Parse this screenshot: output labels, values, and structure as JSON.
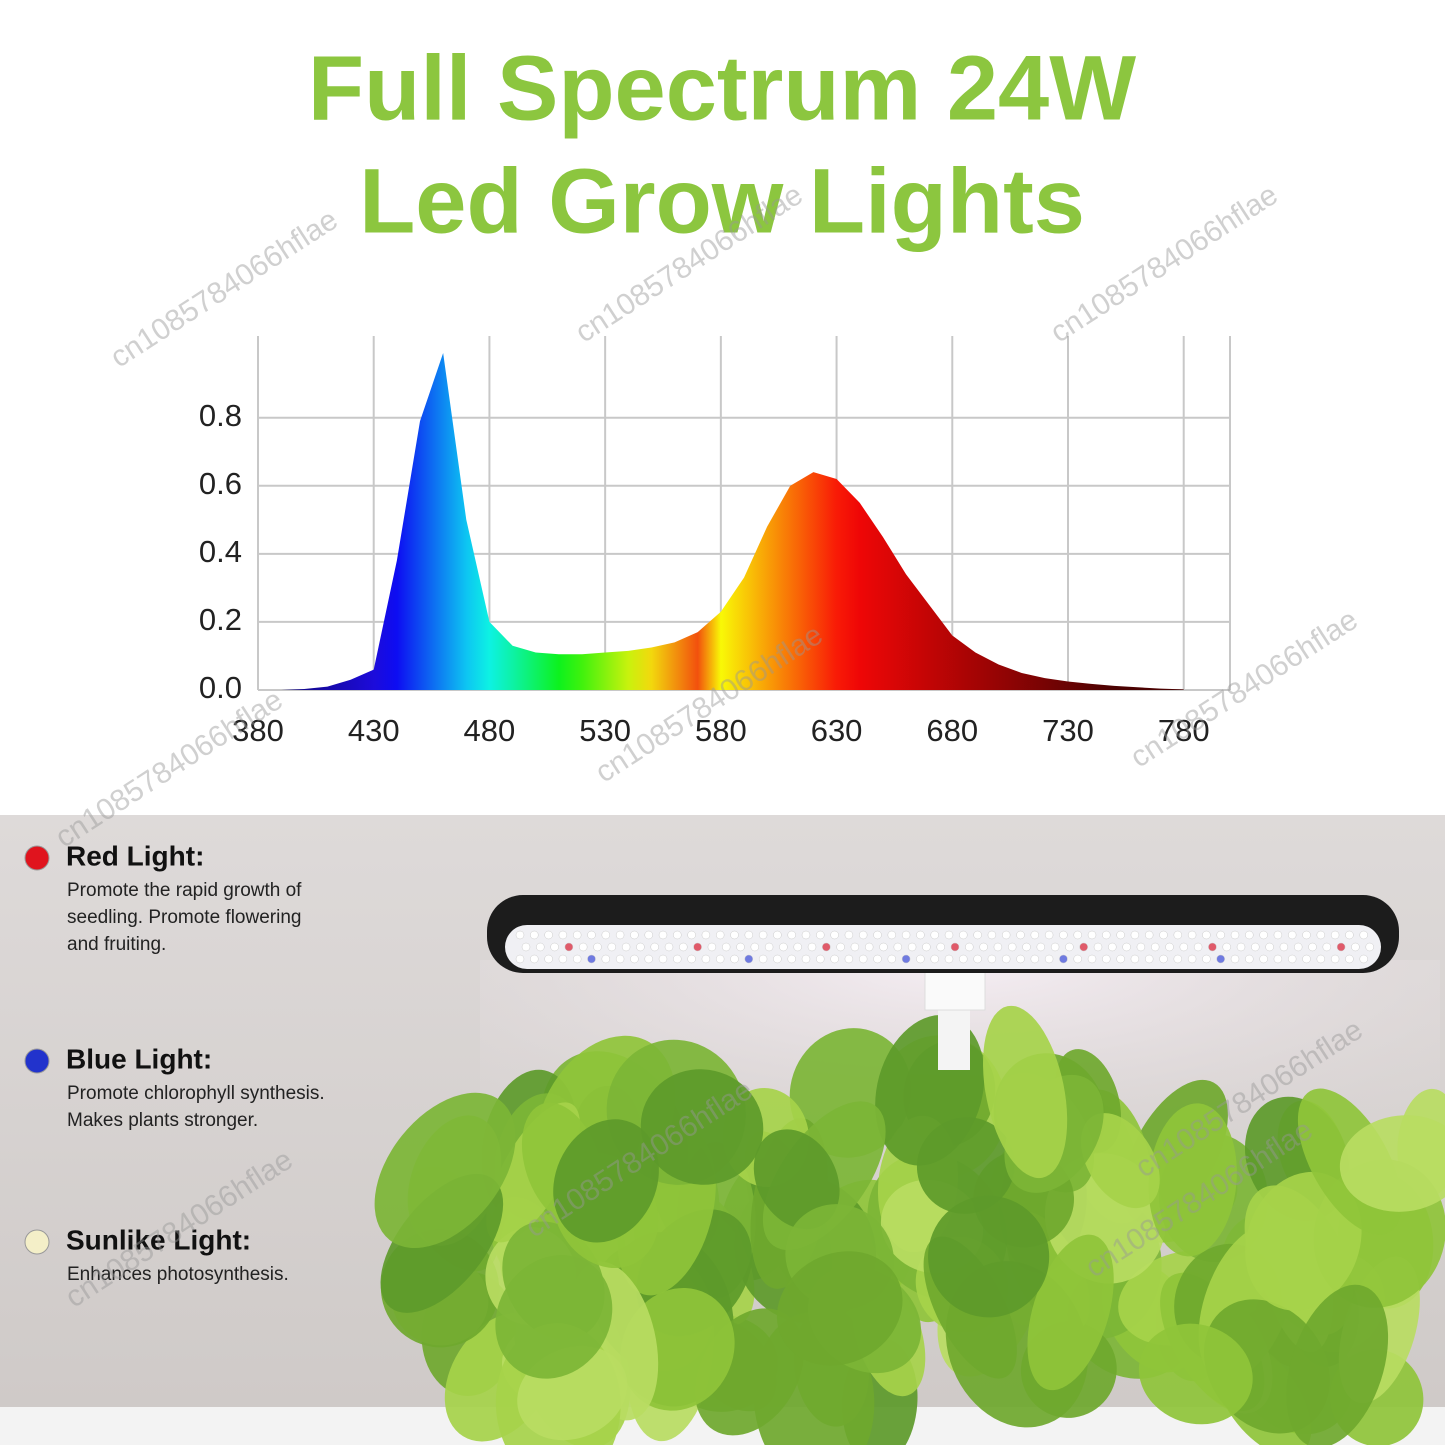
{
  "chart_data": {
    "type": "area",
    "title": [
      "Full Spectrum 24W",
      "Led Grow Lights"
    ],
    "x": [
      380,
      390,
      400,
      410,
      420,
      430,
      440,
      450,
      460,
      470,
      480,
      490,
      500,
      510,
      520,
      530,
      540,
      550,
      560,
      570,
      580,
      590,
      600,
      610,
      620,
      630,
      640,
      650,
      660,
      670,
      680,
      690,
      700,
      710,
      720,
      730,
      740,
      750,
      760,
      770,
      780
    ],
    "values": [
      0,
      0,
      0.003,
      0.01,
      0.03,
      0.06,
      0.38,
      0.79,
      0.99,
      0.5,
      0.2,
      0.13,
      0.11,
      0.105,
      0.105,
      0.11,
      0.115,
      0.125,
      0.14,
      0.17,
      0.23,
      0.33,
      0.48,
      0.6,
      0.64,
      0.62,
      0.55,
      0.45,
      0.34,
      0.25,
      0.16,
      0.11,
      0.075,
      0.05,
      0.035,
      0.025,
      0.018,
      0.012,
      0.008,
      0.004,
      0.002
    ],
    "xlim": [
      380,
      800
    ],
    "xticks": [
      380,
      430,
      480,
      530,
      580,
      630,
      680,
      730,
      780
    ],
    "ylim": [
      0,
      1.04
    ],
    "yticks": [
      {
        "value": 0,
        "label": "0.0"
      },
      0.2,
      0.4,
      0.6,
      0.8
    ],
    "grid": true,
    "fill": "spectrum"
  },
  "features": [
    {
      "title": "Red Light:",
      "color": "#e0141e",
      "description": [
        "Promote the rapid growth of",
        "seedling. Promote flowering",
        "and fruiting."
      ]
    },
    {
      "title": "Blue Light:",
      "color": "#2233cc",
      "description": [
        "Promote chlorophyll synthesis.",
        "Makes plants stronger."
      ]
    },
    {
      "title": "Sunlike Light:",
      "color": "#f4efc8",
      "description": [
        "Enhances photosynthesis."
      ]
    }
  ],
  "watermark": "cn1085784066hflae"
}
